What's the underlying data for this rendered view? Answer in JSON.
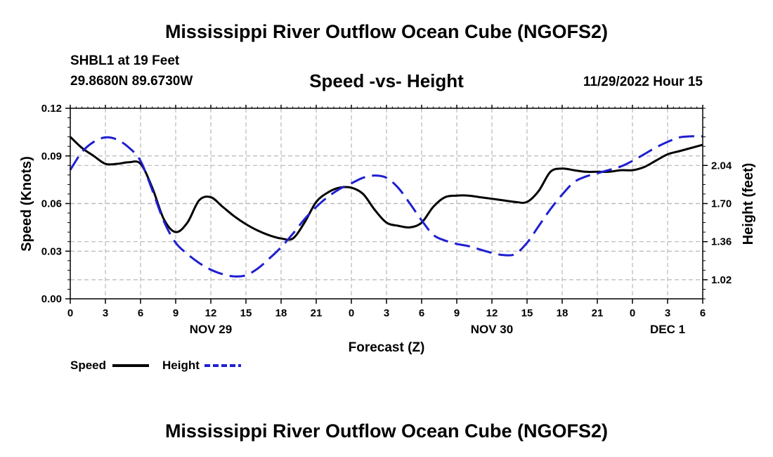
{
  "header": {
    "title": "Mississippi River Outflow Ocean Cube (NGOFS2)",
    "station": "SHBL1 at 19 Feet",
    "latlon": "29.8680N  89.6730W",
    "subtitle": "Speed -vs- Height",
    "datetime": "11/29/2022 Hour 15"
  },
  "footer": {
    "title": "Mississippi River Outflow Ocean Cube (NGOFS2)"
  },
  "chart_data": {
    "type": "line",
    "title": "Speed -vs- Height",
    "xlabel": "Forecast (Z)",
    "ylabel": "Speed (Knots)",
    "y2label": "Height (feet)",
    "x_hours": [
      0,
      54
    ],
    "ylim": [
      0,
      0.12
    ],
    "y2lim": [
      0.85,
      2.55
    ],
    "grid": true,
    "x_tick_labels": [
      "0",
      "3",
      "6",
      "9",
      "12",
      "15",
      "18",
      "21",
      "0",
      "3",
      "6",
      "9",
      "12",
      "15",
      "18",
      "21",
      "0",
      "3",
      "6"
    ],
    "day_labels": [
      {
        "label": "NOV 29",
        "hour": 12
      },
      {
        "label": "NOV 30",
        "hour": 36
      },
      {
        "label": "DEC 1",
        "hour": 51
      }
    ],
    "y_ticks": [
      "0.00",
      "0.03",
      "0.06",
      "0.09",
      "0.12"
    ],
    "y2_ticks": [
      "1.02",
      "1.36",
      "1.70",
      "2.04"
    ],
    "series": [
      {
        "name": "Speed",
        "axis": "left",
        "color": "#000000",
        "dash": "solid",
        "x": [
          0,
          1,
          2,
          3,
          4,
          5,
          6,
          7,
          8,
          9,
          10,
          11,
          12,
          13,
          14,
          15,
          16,
          17,
          18,
          19,
          20,
          21,
          22,
          23,
          24,
          25,
          26,
          27,
          28,
          29,
          30,
          31,
          32,
          33,
          34,
          35,
          36,
          37,
          38,
          39,
          40,
          41,
          42,
          43,
          44,
          45,
          46,
          47,
          48,
          49,
          50,
          51,
          52,
          53,
          54
        ],
        "values": [
          0.102,
          0.095,
          0.09,
          0.085,
          0.085,
          0.086,
          0.085,
          0.07,
          0.05,
          0.042,
          0.048,
          0.062,
          0.064,
          0.058,
          0.052,
          0.047,
          0.043,
          0.04,
          0.038,
          0.038,
          0.048,
          0.061,
          0.067,
          0.07,
          0.07,
          0.066,
          0.056,
          0.048,
          0.046,
          0.045,
          0.048,
          0.058,
          0.064,
          0.065,
          0.065,
          0.064,
          0.063,
          0.062,
          0.061,
          0.061,
          0.068,
          0.08,
          0.082,
          0.081,
          0.08,
          0.08,
          0.08,
          0.081,
          0.081,
          0.083,
          0.087,
          0.091,
          0.093,
          0.095,
          0.097
        ]
      },
      {
        "name": "Height",
        "axis": "right",
        "color": "#1f1fd0",
        "dash": "dashed",
        "x": [
          0,
          1,
          2,
          3,
          4,
          5,
          6,
          7,
          8,
          9,
          10,
          11,
          12,
          13,
          14,
          15,
          16,
          17,
          18,
          19,
          20,
          21,
          22,
          23,
          24,
          25,
          26,
          27,
          28,
          29,
          30,
          31,
          32,
          33,
          34,
          35,
          36,
          37,
          38,
          39,
          40,
          41,
          42,
          43,
          44,
          45,
          46,
          47,
          48,
          49,
          50,
          51,
          52,
          53,
          54
        ],
        "values": [
          2.0,
          2.16,
          2.25,
          2.29,
          2.27,
          2.2,
          2.08,
          1.82,
          1.54,
          1.35,
          1.25,
          1.17,
          1.11,
          1.07,
          1.05,
          1.06,
          1.12,
          1.21,
          1.31,
          1.43,
          1.56,
          1.67,
          1.76,
          1.83,
          1.88,
          1.93,
          1.95,
          1.93,
          1.84,
          1.7,
          1.55,
          1.42,
          1.37,
          1.34,
          1.32,
          1.29,
          1.26,
          1.24,
          1.25,
          1.35,
          1.5,
          1.65,
          1.78,
          1.89,
          1.94,
          1.97,
          2.0,
          2.03,
          2.08,
          2.14,
          2.2,
          2.25,
          2.29,
          2.3,
          2.3
        ]
      }
    ],
    "legend": "bottom-left"
  }
}
